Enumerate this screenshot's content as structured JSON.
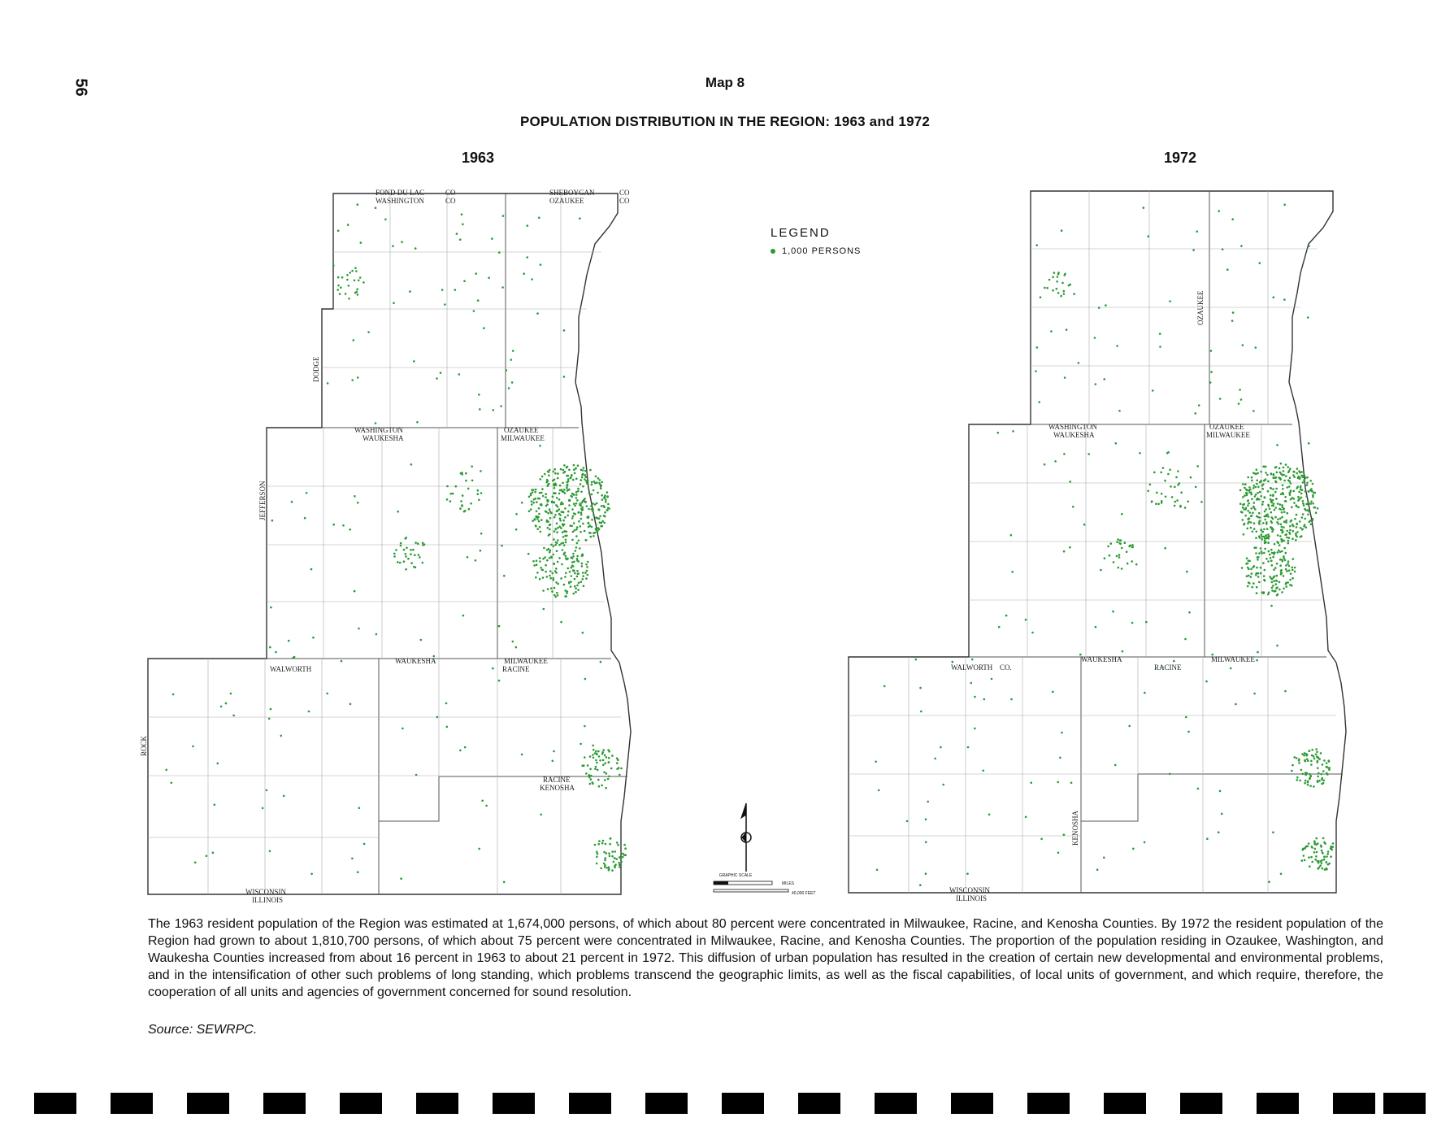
{
  "page_number": "56",
  "map_number": "Map 8",
  "title": "POPULATION DISTRIBUTION IN THE REGION: 1963 and 1972",
  "panels": [
    {
      "year": "1963",
      "dot_count": 1674
    },
    {
      "year": "1972",
      "dot_count": 1811
    }
  ],
  "legend": {
    "title": "LEGEND",
    "item": "1,000 PERSONS",
    "dot_color": "#2a9a32"
  },
  "labels_1963": {
    "fond_du_lac": "FOND DU LAC",
    "sheboygan": "SHEBOYGAN",
    "washington": "WASHINGTON",
    "ozaukee": "OZAUKEE",
    "waukesha": "WAUKESHA",
    "milwaukee": "MILWAUKEE",
    "racine": "RACINE",
    "kenosha": "KENOSHA",
    "walworth": "WALWORTH",
    "wisconsin": "WISCONSIN",
    "illinois": "ILLINOIS",
    "dodge": "DODGE",
    "jefferson": "JEFFERSON",
    "rock": "ROCK",
    "co": "CO"
  },
  "labels_1972": {
    "washington": "WASHINGTON",
    "ozaukee": "OZAUKEE",
    "waukesha": "WAUKESHA",
    "milwaukee": "MILWAUKEE",
    "racine": "RACINE",
    "kenosha": "KENOSHA",
    "walworth": "WALWORTH",
    "wisconsin": "WISCONSIN",
    "illinois": "ILLINOIS",
    "co": "CO."
  },
  "scale": {
    "title": "GRAPHIC SCALE",
    "miles": "MILES",
    "feet": "40,000 FEET"
  },
  "caption": "The 1963 resident population of the Region was estimated at 1,674,000 persons, of which about 80 percent were concentrated in Milwaukee, Racine, and Kenosha Counties. By 1972 the resident population of the Region had grown to about 1,810,700 persons, of which about 75 percent were concentrated in Milwaukee, Racine, and Kenosha Counties. The proportion of the population residing in Ozaukee, Washington, and Waukesha Counties increased from about 16 percent in 1963 to about 21 percent in 1972. This diffusion of urban population has resulted in the creation of certain new developmental and environmental problems, and in the intensification of other such problems of long standing, which problems transcend the geographic limits, as well as the fiscal capabilities, of local units of government, and which require, therefore, the cooperation of all units and agencies of government concerned for sound resolution.",
  "source": "Source:  SEWRPC."
}
